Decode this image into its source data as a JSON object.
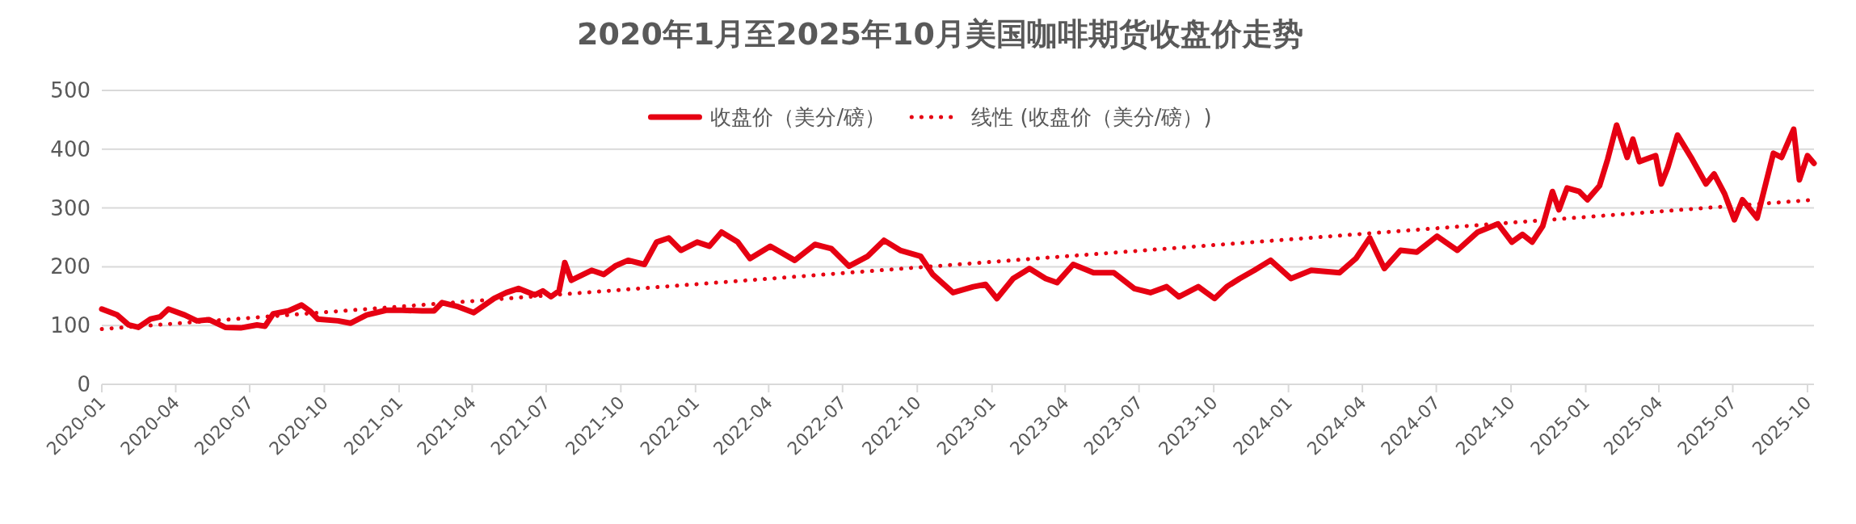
{
  "chart_data": {
    "type": "line",
    "title": "2020年1月至2025年10月美国咖啡期货收盘价走势",
    "xlim": [
      "2020-01-01",
      "2025-10-09"
    ],
    "xticks": [
      {
        "value": "2020-01-01",
        "label": "2020-01"
      },
      {
        "value": "2020-04-01",
        "label": "2020-04"
      },
      {
        "value": "2020-07-01",
        "label": "2020-07"
      },
      {
        "value": "2020-10-01",
        "label": "2020-10"
      },
      {
        "value": "2021-01-01",
        "label": "2021-01"
      },
      {
        "value": "2021-04-01",
        "label": "2021-04"
      },
      {
        "value": "2021-07-01",
        "label": "2021-07"
      },
      {
        "value": "2021-10-01",
        "label": "2021-10"
      },
      {
        "value": "2022-01-01",
        "label": "2022-01"
      },
      {
        "value": "2022-04-01",
        "label": "2022-04"
      },
      {
        "value": "2022-07-01",
        "label": "2022-07"
      },
      {
        "value": "2022-10-01",
        "label": "2022-10"
      },
      {
        "value": "2023-01-01",
        "label": "2023-01"
      },
      {
        "value": "2023-04-01",
        "label": "2023-04"
      },
      {
        "value": "2023-07-01",
        "label": "2023-07"
      },
      {
        "value": "2023-10-01",
        "label": "2023-10"
      },
      {
        "value": "2024-01-01",
        "label": "2024-01"
      },
      {
        "value": "2024-04-01",
        "label": "2024-04"
      },
      {
        "value": "2024-07-01",
        "label": "2024-07"
      },
      {
        "value": "2024-10-01",
        "label": "2024-10"
      },
      {
        "value": "2025-01-01",
        "label": "2025-01"
      },
      {
        "value": "2025-04-01",
        "label": "2025-04"
      },
      {
        "value": "2025-07-01",
        "label": "2025-07"
      },
      {
        "value": "2025-10-01",
        "label": "2025-10"
      }
    ],
    "ylim": [
      0,
      500
    ],
    "yticks": [
      0,
      100,
      200,
      300,
      400,
      500
    ],
    "grid": "y",
    "legend": "top",
    "series": [
      {
        "name": "收盘价（美分/磅）",
        "color": "#e60012",
        "line_style": "solid",
        "x": [
          "2020-01-01",
          "2020-01-20",
          "2020-02-03",
          "2020-02-15",
          "2020-03-01",
          "2020-03-13",
          "2020-03-23",
          "2020-04-12",
          "2020-04-27",
          "2020-05-12",
          "2020-06-01",
          "2020-06-20",
          "2020-07-10",
          "2020-07-20",
          "2020-07-30",
          "2020-08-18",
          "2020-09-03",
          "2020-09-13",
          "2020-09-23",
          "2020-10-18",
          "2020-11-02",
          "2020-11-22",
          "2020-12-16",
          "2021-01-05",
          "2021-01-29",
          "2021-02-13",
          "2021-02-23",
          "2021-03-15",
          "2021-04-03",
          "2021-04-28",
          "2021-05-13",
          "2021-05-28",
          "2021-06-17",
          "2021-06-27",
          "2021-07-07",
          "2021-07-17",
          "2021-07-24",
          "2021-08-01",
          "2021-08-26",
          "2021-09-10",
          "2021-09-25",
          "2021-10-10",
          "2021-10-30",
          "2021-11-14",
          "2021-11-29",
          "2021-12-14",
          "2022-01-03",
          "2022-01-18",
          "2022-02-02",
          "2022-02-22",
          "2022-03-09",
          "2022-04-03",
          "2022-05-03",
          "2022-05-28",
          "2022-06-17",
          "2022-07-09",
          "2022-08-01",
          "2022-08-21",
          "2022-09-10",
          "2022-10-05",
          "2022-10-20",
          "2022-11-14",
          "2022-12-09",
          "2022-12-24",
          "2023-01-07",
          "2023-01-27",
          "2023-02-16",
          "2023-03-08",
          "2023-03-22",
          "2023-04-11",
          "2023-05-06",
          "2023-05-31",
          "2023-06-25",
          "2023-07-15",
          "2023-08-04",
          "2023-08-19",
          "2023-09-12",
          "2023-10-02",
          "2023-10-17",
          "2023-11-02",
          "2023-11-20",
          "2023-12-10",
          "2024-01-04",
          "2024-01-29",
          "2024-03-04",
          "2024-03-24",
          "2024-04-10",
          "2024-04-28",
          "2024-05-18",
          "2024-06-07",
          "2024-07-02",
          "2024-07-27",
          "2024-08-21",
          "2024-09-15",
          "2024-10-02",
          "2024-10-15",
          "2024-10-27",
          "2024-11-09",
          "2024-11-21",
          "2024-11-29",
          "2024-12-09",
          "2024-12-24",
          "2025-01-03",
          "2025-01-18",
          "2025-01-28",
          "2025-02-08",
          "2025-02-21",
          "2025-02-28",
          "2025-03-08",
          "2025-03-28",
          "2025-04-04",
          "2025-04-12",
          "2025-04-24",
          "2025-05-12",
          "2025-05-29",
          "2025-06-08",
          "2025-06-21",
          "2025-07-03",
          "2025-07-13",
          "2025-07-31",
          "2025-08-20",
          "2025-08-30",
          "2025-09-14",
          "2025-09-21",
          "2025-10-01",
          "2025-10-09"
        ],
        "values": [
          128,
          118,
          101,
          97,
          111,
          115,
          128,
          118,
          108,
          110,
          97,
          96,
          101,
          99,
          120,
          125,
          135,
          125,
          111,
          108,
          104,
          118,
          126,
          126,
          125,
          125,
          139,
          132,
          122,
          146,
          156,
          163,
          152,
          159,
          149,
          159,
          207,
          177,
          194,
          187,
          202,
          211,
          204,
          242,
          249,
          228,
          242,
          235,
          259,
          242,
          214,
          235,
          211,
          238,
          231,
          201,
          218,
          245,
          228,
          218,
          187,
          156,
          166,
          170,
          146,
          180,
          197,
          180,
          173,
          204,
          190,
          190,
          163,
          156,
          166,
          149,
          166,
          146,
          166,
          180,
          194,
          211,
          180,
          194,
          190,
          214,
          249,
          197,
          228,
          225,
          252,
          228,
          259,
          273,
          242,
          255,
          242,
          269,
          328,
          297,
          334,
          328,
          314,
          338,
          383,
          441,
          386,
          417,
          379,
          389,
          341,
          369,
          424,
          383,
          341,
          358,
          324,
          280,
          314,
          283,
          393,
          386,
          434,
          348,
          389,
          376
        ]
      },
      {
        "name": "线性 (收盘价（美分/磅）)",
        "type": "line",
        "color": "#e60012",
        "line_style": "dotted",
        "x": [
          "2020-01-01",
          "2025-10-09"
        ],
        "values": [
          94,
          314
        ]
      }
    ]
  }
}
